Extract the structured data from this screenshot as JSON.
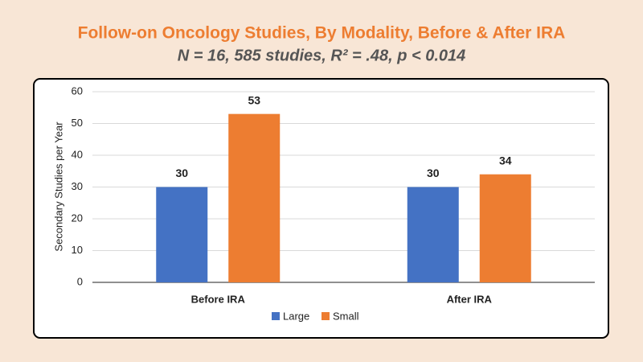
{
  "chart_data": {
    "type": "bar",
    "title": "Follow-on Oncology Studies, By Modality, Before & After IRA",
    "subtitle": "N = 16, 585 studies, R² = .48, p < 0.014",
    "ylabel": "Secondary Studies per Year",
    "categories": [
      "Before IRA",
      "After IRA"
    ],
    "series": [
      {
        "name": "Large",
        "color": "#4472c4",
        "values": [
          30,
          30
        ]
      },
      {
        "name": "Small",
        "color": "#ed7d31",
        "values": [
          53,
          34
        ]
      }
    ],
    "ylim": [
      0,
      60
    ],
    "yticks": [
      0,
      10,
      20,
      30,
      40,
      50,
      60
    ],
    "grid": true,
    "legend": "bottom"
  }
}
